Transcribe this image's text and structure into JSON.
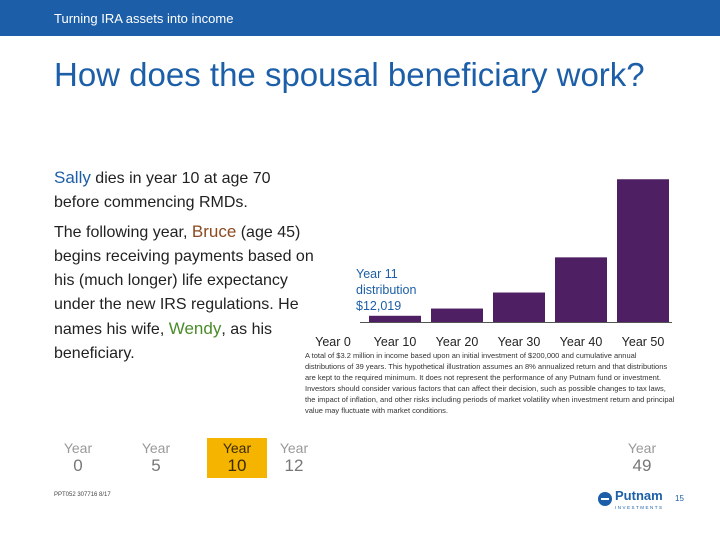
{
  "header": {
    "section": "Turning IRA assets into income"
  },
  "slide": {
    "title": "How does the spousal beneficiary work?"
  },
  "text": {
    "p1_name": "Sally",
    "p1_rest": " dies in year 10 at age 70 before commencing RMDs.",
    "p2_a": "The following year, ",
    "p2_name1": "Bruce",
    "p2_b": " (age 45) begins receiving payments based on his (much longer) life expectancy under the new IRS regulations. He names his wife, ",
    "p2_name2": "Wendy",
    "p2_c": ", as his beneficiary."
  },
  "chart_data": {
    "type": "bar",
    "categories": [
      "Year 0",
      "Year 10",
      "Year 20",
      "Year 30",
      "Year 40",
      "Year 50"
    ],
    "values": [
      0,
      12019,
      26000,
      57000,
      125000,
      276000
    ],
    "annotation": {
      "line1": "Year 11",
      "line2": "distribution",
      "line3": "$12,019"
    },
    "colors": {
      "bar": "#4f1f63",
      "axis": "#555555",
      "annotation": "#1c5fa8"
    },
    "ylim": [
      0,
      290000
    ]
  },
  "footnote": "A total of $3.2 million in income based upon an initial investment of $200,000 and cumulative annual distributions of 39 years. This hypothetical illustration assumes an 8% annualized return and that distributions are kept to the required minimum. It does not represent the performance of any Putnam fund or investment. Investors should consider various factors that can affect their decision, such as possible changes to tax laws, the impact of inflation, and other risks including periods of market volatility when investment return and principal value may fluctuate with market conditions.",
  "timeline": [
    {
      "word": "Year",
      "num": "0"
    },
    {
      "word": "Year",
      "num": "5"
    },
    {
      "word": "Year",
      "num": "10"
    },
    {
      "word": "Year",
      "num": "12"
    },
    {
      "word": "Year",
      "num": "49"
    }
  ],
  "footer": {
    "code": "PPT052 307716 8/17",
    "logo": "Putnam",
    "logo_sub": "INVESTMENTS",
    "page": "15"
  }
}
